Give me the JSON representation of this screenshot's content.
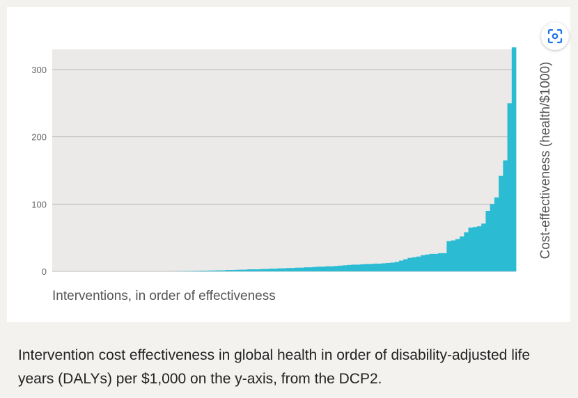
{
  "caption": "Intervention cost effectiveness in global health in order of disability-adjusted life years (DALYs) per $1,000 on the y-axis, from the DCP2.",
  "colors": {
    "bar": "#2bbcd4",
    "plot_bg": "#ebeae8",
    "grid": "#b8b8b8"
  },
  "scan_button": {
    "icon": "scan-icon"
  },
  "chart_data": {
    "type": "bar",
    "title": "",
    "xlabel": "Interventions, in order of effectiveness",
    "ylabel": "Cost-effectiveness (health/$1000)",
    "ylim": [
      0,
      330
    ],
    "yticks": [
      "0",
      "100",
      "200",
      "300"
    ],
    "ytick_values": [
      0,
      100,
      200,
      300
    ],
    "grid": true,
    "values": [
      0,
      0,
      0,
      0,
      0,
      0,
      0,
      0,
      0,
      0,
      0,
      0,
      0,
      0,
      0,
      0,
      0,
      0,
      0,
      0,
      0,
      0,
      0,
      0,
      0,
      0,
      0,
      0,
      0.2,
      0.3,
      0.5,
      0.5,
      0.7,
      0.8,
      1,
      1,
      1.2,
      1.3,
      1.5,
      1.5,
      2,
      2,
      2.3,
      2.5,
      2.5,
      3,
      3,
      3,
      3.5,
      3.5,
      4,
      4,
      4.5,
      4.5,
      5,
      5,
      5.5,
      5.5,
      6,
      6,
      6.5,
      7,
      7,
      7.5,
      7.5,
      8,
      8.5,
      9,
      9.5,
      10,
      10,
      10.5,
      11,
      11,
      11.5,
      11.5,
      12,
      12.5,
      13,
      14,
      16,
      18,
      20,
      21,
      22,
      24,
      25,
      26,
      26,
      27,
      27,
      45,
      46,
      48,
      52,
      58,
      65,
      66,
      67,
      71,
      90,
      100,
      110,
      142,
      165,
      250,
      333
    ]
  }
}
